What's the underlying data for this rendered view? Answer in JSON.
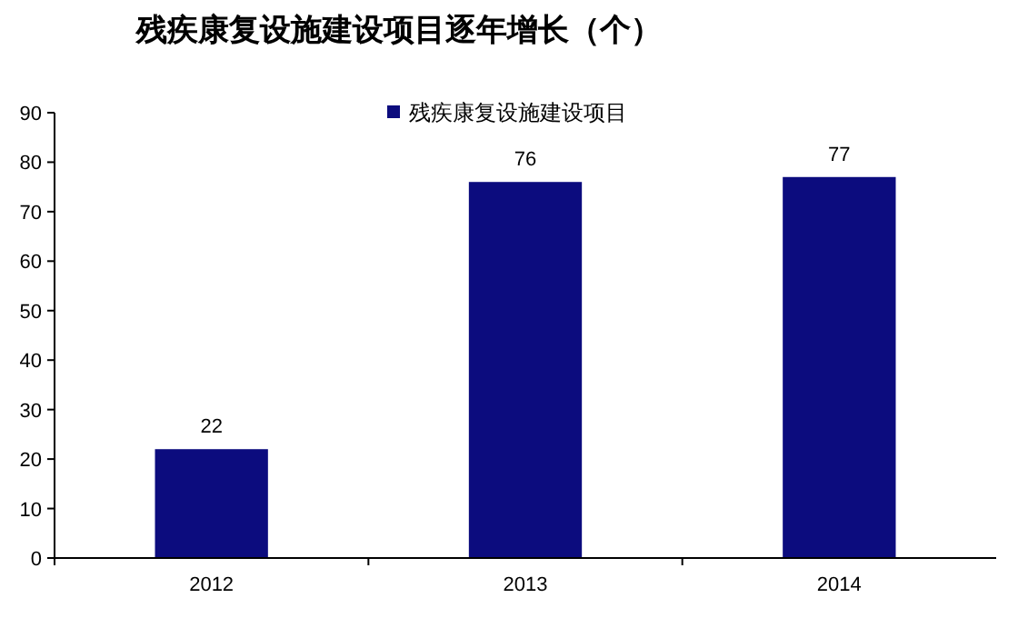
{
  "chart_data": {
    "type": "bar",
    "title": "残疾康复设施建设项目逐年增长（个）",
    "categories": [
      "2012",
      "2013",
      "2014"
    ],
    "series": [
      {
        "name": "残疾康复设施建设项目",
        "color": "#0c0c7e",
        "values": [
          22,
          76,
          77
        ]
      }
    ],
    "ylim": [
      0,
      90
    ],
    "yticks": [
      0,
      10,
      20,
      30,
      40,
      50,
      60,
      70,
      80,
      90
    ],
    "data_labels": true,
    "legend": "top",
    "grid": false
  }
}
